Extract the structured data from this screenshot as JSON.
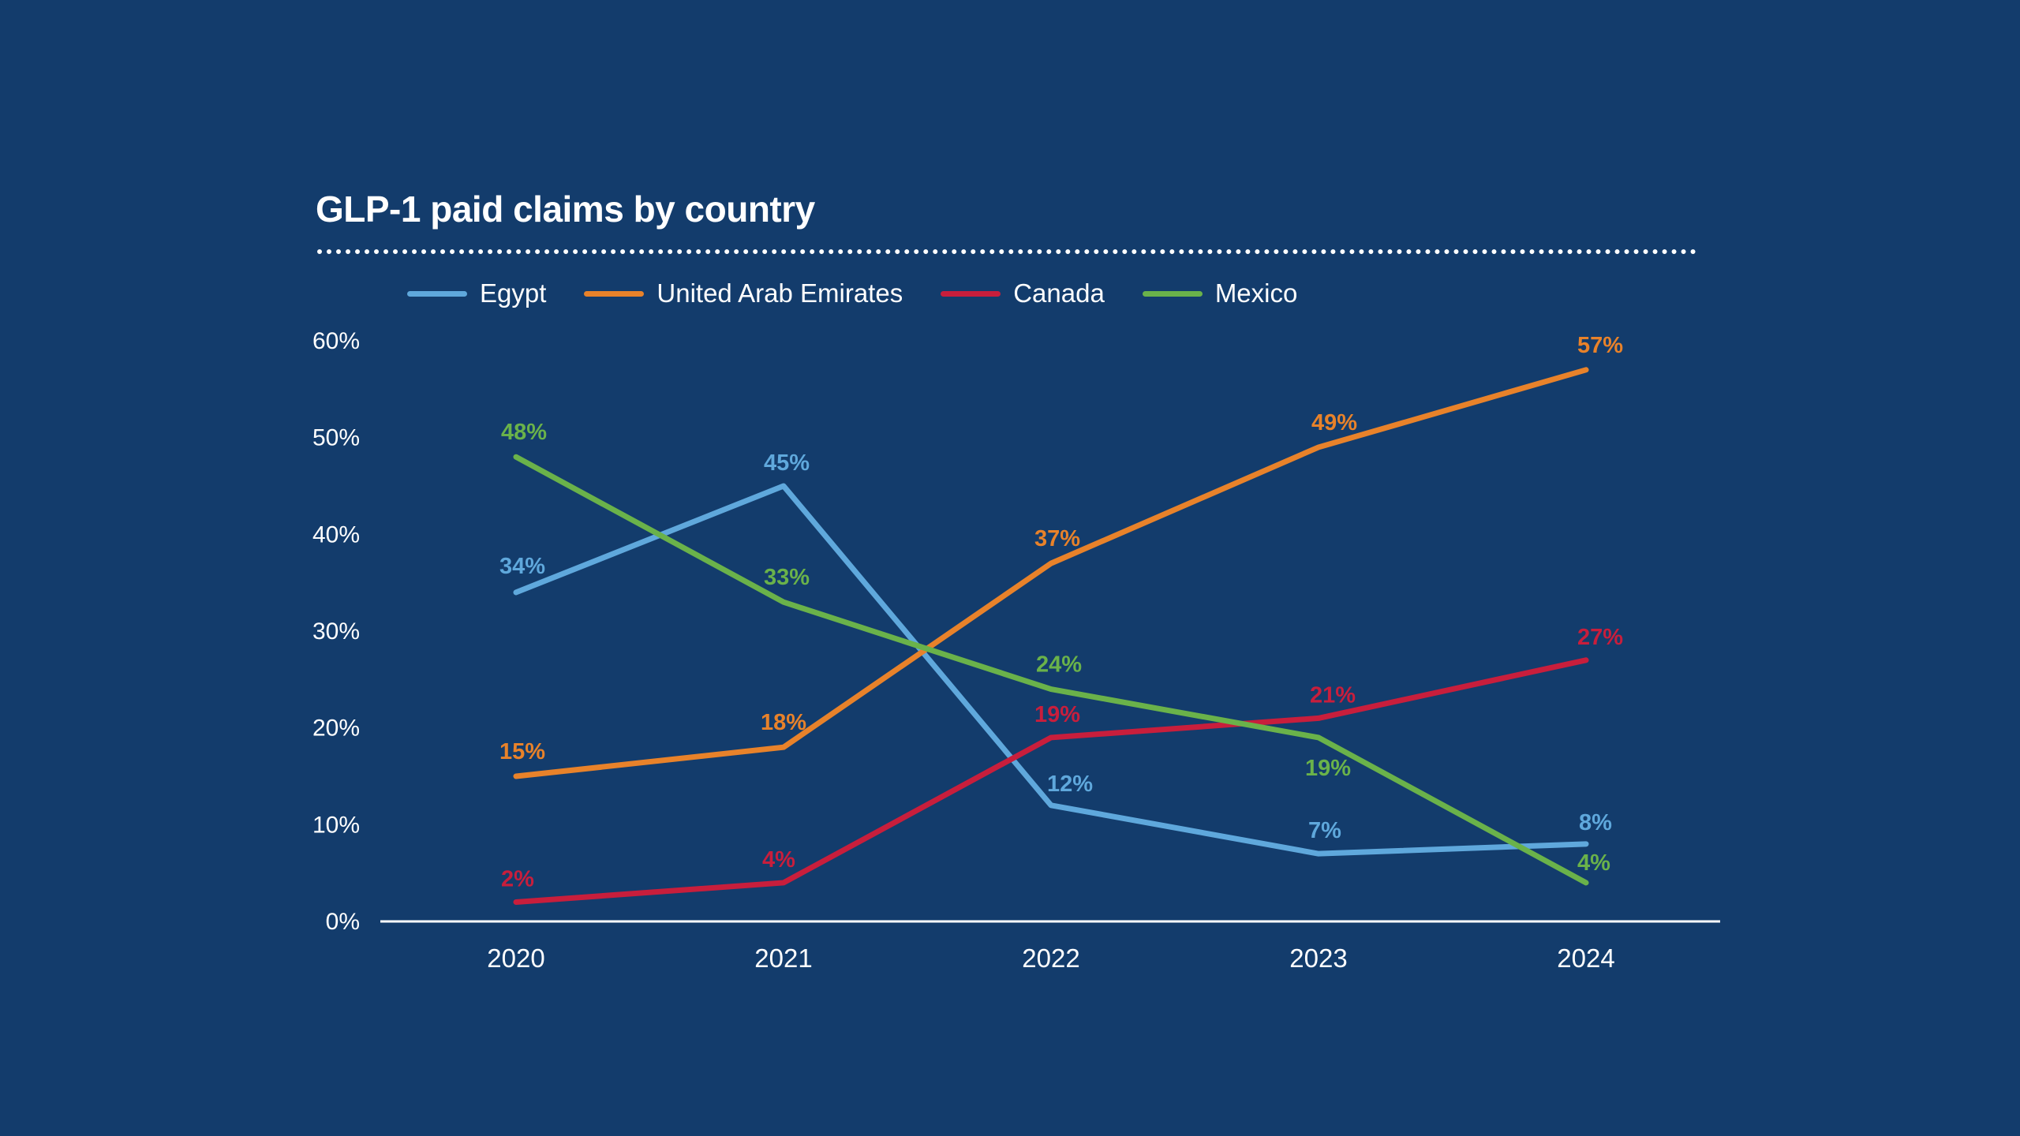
{
  "chart_data": {
    "type": "line",
    "title": "GLP-1 paid claims by country",
    "xlabel": "",
    "ylabel": "",
    "categories": [
      "2020",
      "2021",
      "2022",
      "2023",
      "2024"
    ],
    "ylim": [
      0,
      60
    ],
    "yticks": [
      "0%",
      "10%",
      "20%",
      "30%",
      "40%",
      "50%",
      "60%"
    ],
    "value_suffix": "%",
    "grid": false,
    "legend_position": "top-left",
    "series": [
      {
        "name": "Egypt",
        "color": "#5fa8dc",
        "values": [
          34,
          45,
          12,
          7,
          8
        ],
        "labels": [
          "34%",
          "45%",
          "12%",
          "7%",
          "8%"
        ]
      },
      {
        "name": "United Arab Emirates",
        "color": "#e8822a",
        "values": [
          15,
          18,
          37,
          49,
          57
        ],
        "labels": [
          "15%",
          "18%",
          "37%",
          "49%",
          "57%"
        ]
      },
      {
        "name": "Canada",
        "color": "#c81e3c",
        "values": [
          2,
          4,
          19,
          21,
          27
        ],
        "labels": [
          "2%",
          "4%",
          "19%",
          "21%",
          "27%"
        ]
      },
      {
        "name": "Mexico",
        "color": "#6ab24a",
        "values": [
          48,
          33,
          24,
          19,
          4
        ],
        "labels": [
          "48%",
          "33%",
          "24%",
          "19%",
          "4%"
        ]
      }
    ]
  },
  "colors": {
    "background": "#133c6c",
    "text": "#ffffff",
    "axis": "#ffffff"
  }
}
